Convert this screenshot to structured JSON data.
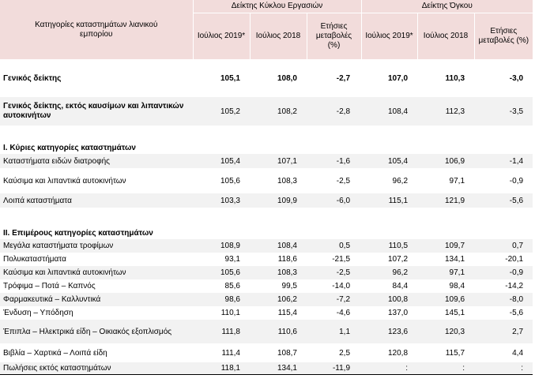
{
  "header": {
    "category_col": "Κατηγορίες καταστημάτων λιανικού εμπορίου",
    "turnover_group": "Δείκτης Κύκλου Εργασιών",
    "volume_group": "Δείκτης Όγκου",
    "col_july2019": "Ιούλιος 2019*",
    "col_july2018": "Ιούλιος 2018",
    "col_change": "Ετήσιες μεταβολές (%)"
  },
  "rows": {
    "general": {
      "label": "Γενικός δείκτης",
      "t19": "105,1",
      "t18": "108,0",
      "tc": "-2,7",
      "v19": "107,0",
      "v18": "110,3",
      "vc": "-3,0"
    },
    "general_ex": {
      "label": "Γενικός δείκτης, εκτός καυσίμων και λιπαντικών αυτοκινήτων",
      "t19": "105,2",
      "t18": "108,2",
      "tc": "-2,8",
      "v19": "108,4",
      "v18": "112,3",
      "vc": "-3,5"
    },
    "section1_title": "Ι. Κύριες κατηγορίες καταστημάτων",
    "s1": [
      {
        "label": "Καταστήματα ειδών διατροφής",
        "t19": "105,4",
        "t18": "107,1",
        "tc": "-1,6",
        "v19": "105,4",
        "v18": "106,9",
        "vc": "-1,4"
      },
      {
        "label": "Καύσιμα και λιπαντικά αυτοκινήτων",
        "t19": "105,6",
        "t18": "108,3",
        "tc": "-2,5",
        "v19": "96,2",
        "v18": "97,1",
        "vc": "-0,9"
      },
      {
        "label": "Λοιπά καταστήματα",
        "t19": "103,3",
        "t18": "109,9",
        "tc": "-6,0",
        "v19": "115,1",
        "v18": "121,9",
        "vc": "-5,6"
      }
    ],
    "section2_title": "ΙΙ. Επιμέρους κατηγορίες καταστημάτων",
    "s2": [
      {
        "label": "Μεγάλα καταστήματα τροφίμων",
        "t19": "108,9",
        "t18": "108,4",
        "tc": "0,5",
        "v19": "110,5",
        "v18": "109,7",
        "vc": "0,7"
      },
      {
        "label": "Πολυκαταστήματα",
        "t19": "93,1",
        "t18": "118,6",
        "tc": "-21,5",
        "v19": "107,2",
        "v18": "134,1",
        "vc": "-20,1"
      },
      {
        "label": "Καύσιμα και λιπαντικά αυτοκινήτων",
        "t19": "105,6",
        "t18": "108,3",
        "tc": "-2,5",
        "v19": "96,2",
        "v18": "97,1",
        "vc": "-0,9"
      },
      {
        "label": "Τρόφιμα – Ποτά – Καπνός",
        "t19": "85,6",
        "t18": "99,5",
        "tc": "-14,0",
        "v19": "84,4",
        "v18": "98,4",
        "vc": "-14,2"
      },
      {
        "label": "Φαρμακευτικά – Καλλυντικά",
        "t19": "98,6",
        "t18": "106,2",
        "tc": "-7,2",
        "v19": "100,8",
        "v18": "109,6",
        "vc": "-8,0"
      },
      {
        "label": "Ένδυση – Υπόδηση",
        "t19": "110,1",
        "t18": "115,4",
        "tc": "-4,6",
        "v19": "137,0",
        "v18": "145,1",
        "vc": "-5,6"
      },
      {
        "label": "Έπιπλα – Ηλεκτρικά είδη – Οικιακός εξοπλισμός",
        "t19": "111,8",
        "t18": "110,6",
        "tc": "1,1",
        "v19": "123,6",
        "v18": "120,3",
        "vc": "2,7"
      },
      {
        "label": "Βιβλία – Χαρτικά – Λοιπά είδη",
        "t19": "111,4",
        "t18": "108,7",
        "tc": "2,5",
        "v19": "120,8",
        "v18": "115,7",
        "vc": "4,4"
      },
      {
        "label": "Πωλήσεις εκτός καταστημάτων",
        "t19": "118,1",
        "t18": "134,1",
        "tc": "-11,9",
        "v19": ":",
        "v18": ":",
        "vc": ":"
      }
    ]
  }
}
